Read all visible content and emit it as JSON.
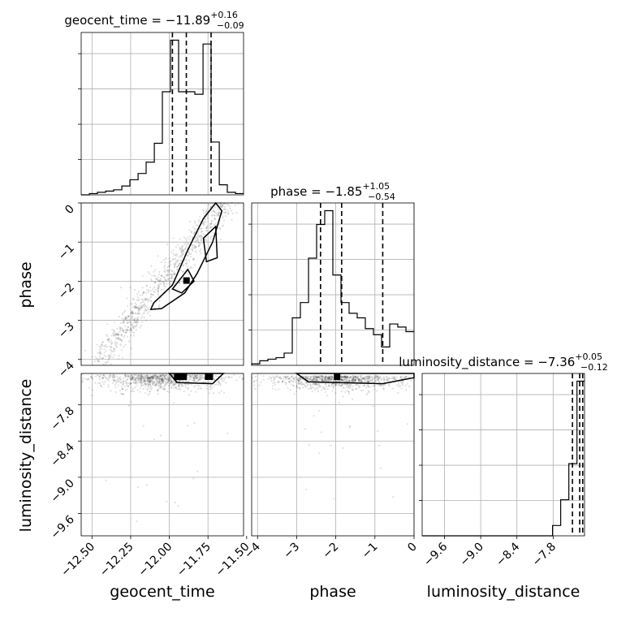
{
  "chart_data": {
    "type": "corner",
    "parameters": [
      "geocent_time",
      "phase",
      "luminosity_distance"
    ],
    "titles": [
      {
        "param": "geocent_time",
        "prefix": "geocent_time = ",
        "median": "−11.89",
        "plus": "+0.16",
        "minus": "−0.09"
      },
      {
        "param": "phase",
        "prefix": "phase = ",
        "median": "−1.85",
        "plus": "+1.05",
        "minus": "−0.54"
      },
      {
        "param": "luminosity_distance",
        "prefix": "luminosity_distance = ",
        "median": "−7.36",
        "plus": "+0.05",
        "minus": "−0.12"
      }
    ],
    "axis_labels": {
      "geocent_time": "geocent_time",
      "phase": "phase",
      "luminosity_distance": "luminosity_distance"
    },
    "ranges": {
      "geocent_time": [
        -12.57,
        -11.52
      ],
      "phase": [
        -4.15,
        0.0
      ],
      "luminosity_distance": [
        -9.97,
        -7.28
      ]
    },
    "ticks": {
      "geocent_time": {
        "values": [
          -12.5,
          -12.25,
          -12.0,
          -11.75,
          -11.5
        ],
        "labels": [
          "−12.50",
          "−12.25",
          "−12.00",
          "−11.75",
          "−11.50"
        ]
      },
      "phase": {
        "values": [
          -4,
          -3,
          -2,
          -1,
          0
        ],
        "labels": [
          "−4",
          "−3",
          "−2",
          "−1",
          "0"
        ]
      },
      "luminosity_distance": {
        "values": [
          -9.6,
          -9.0,
          -8.4,
          -7.8
        ],
        "labels": [
          "−9.6",
          "−9.0",
          "−8.4",
          "−7.8"
        ]
      }
    },
    "histograms": {
      "geocent_time": {
        "edges": [
          -12.57,
          -12.517,
          -12.465,
          -12.412,
          -12.36,
          -12.307,
          -12.255,
          -12.202,
          -12.15,
          -12.097,
          -12.045,
          -11.992,
          -11.94,
          -11.887,
          -11.835,
          -11.782,
          -11.73,
          -11.677,
          -11.625,
          -11.572,
          -11.52
        ],
        "counts": [
          0,
          1,
          2,
          3,
          4,
          7,
          12,
          17,
          26,
          41,
          82,
          123,
          82,
          82,
          80,
          120,
          42,
          8,
          2,
          1
        ],
        "quantiles": [
          -11.98,
          -11.89,
          -11.73
        ]
      },
      "phase": {
        "edges": [
          -4.15,
          -3.943,
          -3.735,
          -3.527,
          -3.32,
          -3.112,
          -2.905,
          -2.697,
          -2.49,
          -2.283,
          -2.075,
          -1.867,
          -1.66,
          -1.453,
          -1.245,
          -1.037,
          -0.83,
          -0.622,
          -0.415,
          -0.207,
          0.0
        ],
        "counts": [
          1,
          3,
          4,
          5,
          8,
          31,
          41,
          70,
          92,
          101,
          59,
          41,
          34,
          31,
          24,
          20,
          12,
          27,
          25,
          22
        ],
        "quantiles": [
          -2.39,
          -1.85,
          -0.8
        ]
      },
      "luminosity_distance": {
        "edges": [
          -9.97,
          -9.835,
          -9.7,
          -9.565,
          -9.43,
          -9.295,
          -9.16,
          -9.025,
          -8.89,
          -8.755,
          -8.62,
          -8.485,
          -8.35,
          -8.215,
          -8.08,
          -7.945,
          -7.81,
          -7.675,
          -7.54,
          -7.405,
          -7.28
        ],
        "counts": [
          0,
          0,
          0,
          0,
          0,
          0,
          0,
          0,
          0,
          0,
          0,
          0,
          0,
          0,
          0,
          0,
          2,
          7,
          14,
          30
        ],
        "quantiles": [
          -7.48,
          -7.36,
          -7.31
        ]
      }
    },
    "grid": true,
    "line_style": "dashed quantile lines"
  }
}
